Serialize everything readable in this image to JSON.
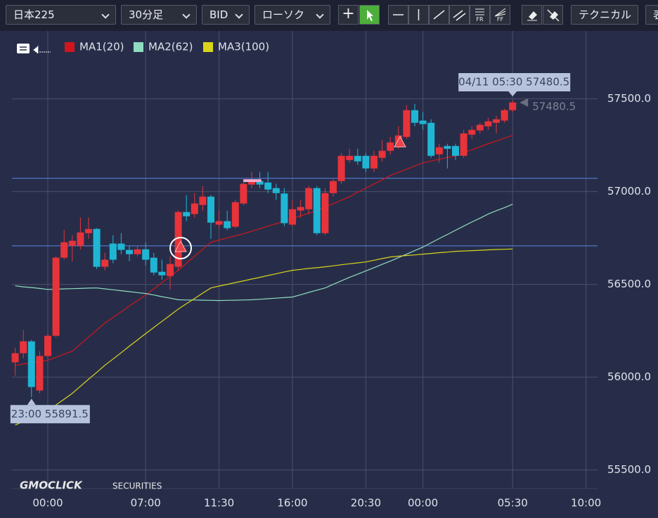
{
  "toolbar": {
    "symbol": "日本225",
    "timeframe": "30分足",
    "price_type": "BID",
    "chart_style": "ローソク",
    "tool_fr": "FR",
    "tool_ff": "FF",
    "technical": "テクニカル",
    "table": "表"
  },
  "logo": {
    "brand": "GMOCLICK",
    "suffix": "SECURITIES"
  },
  "chart_data": {
    "type": "candlestick",
    "categories": [
      null,
      null,
      null,
      null,
      "00:00",
      null,
      null,
      null,
      null,
      null,
      null,
      null,
      null,
      null,
      null,
      null,
      "07:00",
      null,
      null,
      null,
      null,
      null,
      null,
      null,
      null,
      "11:30",
      null,
      null,
      null,
      null,
      null,
      null,
      null,
      null,
      "16:00",
      null,
      null,
      null,
      null,
      null,
      null,
      null,
      null,
      "20:30",
      null,
      null,
      null,
      null,
      null,
      null,
      "00:00",
      null,
      null,
      null,
      null,
      null,
      null,
      null,
      null,
      null,
      null,
      "05:30",
      null,
      null,
      null,
      null,
      null,
      null,
      null,
      null,
      "10:00"
    ],
    "open": [
      56080,
      56129,
      56193,
      55928,
      56114,
      56223,
      56644,
      56708,
      56708,
      56776,
      56799,
      56595,
      56720,
      56720,
      56686,
      56663,
      56689,
      56644,
      56568,
      56545,
      56595,
      56890,
      56879,
      56928,
      56973,
      56822,
      56841,
      56811,
      56936,
      57038,
      57057,
      57049,
      57019,
      56990,
      56822,
      56898,
      56905,
      57019,
      56776,
      56992,
      57057,
      57170,
      57193,
      57193,
      57125,
      57182,
      57220,
      57258,
      57295,
      57439,
      57383,
      57371,
      57201,
      57246,
      57246,
      57193,
      57307,
      57330,
      57352,
      57371,
      57383,
      57439,
      null,
      null,
      null,
      null,
      null,
      null,
      null,
      null,
      null
    ],
    "high": [
      56159,
      56254,
      56201,
      56140,
      56235,
      56651,
      56792,
      56765,
      56860,
      56860,
      56803,
      56670,
      56765,
      56776,
      56708,
      56708,
      56727,
      56670,
      56633,
      56651,
      56898,
      56981,
      56992,
      57030,
      56981,
      56898,
      56898,
      56955,
      57068,
      57106,
      57106,
      57106,
      57042,
      57019,
      56955,
      56955,
      57030,
      57030,
      57019,
      57068,
      57208,
      57231,
      57231,
      57208,
      57220,
      57277,
      57295,
      57352,
      57466,
      57473,
      57428,
      57390,
      57258,
      57258,
      57258,
      57333,
      57352,
      57371,
      57398,
      57409,
      57447,
      57492,
      null,
      null,
      null,
      null,
      null,
      null,
      null,
      null,
      null
    ],
    "low": [
      56008,
      56102,
      55891.5,
      55913,
      56102,
      56216,
      56633,
      56625,
      56689,
      56746,
      56583,
      56576,
      56614,
      56663,
      56625,
      56651,
      56602,
      56549,
      56526,
      56473,
      56576,
      56841,
      56860,
      56898,
      56746,
      56803,
      56792,
      56803,
      56928,
      57019,
      57019,
      56992,
      56955,
      56814,
      56814,
      56860,
      56879,
      56765,
      56765,
      56973,
      57042,
      57155,
      57144,
      57106,
      57106,
      57163,
      57201,
      57231,
      57284,
      57352,
      57333,
      57182,
      57155,
      57125,
      57170,
      57182,
      57284,
      57314,
      57333,
      57314,
      57371,
      57428,
      null,
      null,
      null,
      null,
      null,
      null,
      null,
      null,
      null
    ],
    "close": [
      56129,
      56193,
      55947,
      56114,
      56223,
      56644,
      56727,
      56735,
      56780,
      56799,
      56595,
      56633,
      56633,
      56686,
      56663,
      56689,
      56633,
      56564,
      56549,
      56610,
      56890,
      56867,
      56936,
      56973,
      56833,
      56841,
      56803,
      56943,
      57042,
      57057,
      57038,
      57011,
      56992,
      56830,
      56905,
      56917,
      57019,
      56776,
      56992,
      57057,
      57193,
      57193,
      57163,
      57125,
      57193,
      57220,
      57265,
      57303,
      57439,
      57371,
      57364,
      57193,
      57239,
      57231,
      57193,
      57314,
      57333,
      57360,
      57379,
      57390,
      57439,
      57480.5,
      null,
      null,
      null,
      null,
      null,
      null,
      null,
      null,
      null
    ],
    "up_color": "#e8333a",
    "down_color": "#1fb6d4",
    "series": [
      {
        "name": "MA1(20)",
        "color": "#d0161c",
        "values": [
          56064,
          56071,
          56078,
          56084,
          56091,
          56107,
          56124,
          56140,
          56178,
          56216,
          56254,
          56292,
          56322,
          56352,
          56383,
          56413,
          56443,
          56476,
          56510,
          56543,
          56576,
          56614,
          56652,
          56689,
          56727,
          56739,
          56750,
          56762,
          56773,
          56787,
          56800,
          56814,
          56827,
          56841,
          56855,
          56870,
          56884,
          56898,
          56917,
          56935,
          56954,
          56973,
          56996,
          57019,
          57041,
          57064,
          57087,
          57104,
          57121,
          57138,
          57155,
          57165,
          57174,
          57184,
          57193,
          57209,
          57226,
          57242,
          57258,
          57273,
          57288,
          57303,
          null,
          null,
          null,
          null,
          null,
          null,
          null,
          null,
          null
        ]
      },
      {
        "name": "MA2(62)",
        "color": "#8fdcc0",
        "values": [
          56492,
          56487,
          56483,
          56478,
          56473,
          56474,
          56476,
          56477,
          56478,
          56480,
          56481,
          56476,
          56471,
          56466,
          56461,
          56456,
          56451,
          56443,
          56434,
          56426,
          56417,
          56416,
          56416,
          56415,
          56414,
          56413,
          56414,
          56415,
          56416,
          56417,
          56420,
          56423,
          56426,
          56429,
          56432,
          56444,
          56457,
          56469,
          56481,
          56500,
          56519,
          56538,
          56555,
          56573,
          56590,
          56608,
          56625,
          56644,
          56663,
          56682,
          56701,
          56724,
          56747,
          56769,
          56792,
          56814,
          56836,
          56857,
          56879,
          56897,
          56914,
          56932,
          null,
          null,
          null,
          null,
          null,
          null,
          null,
          null,
          null
        ]
      },
      {
        "name": "MA3(100)",
        "color": "#d9d51a",
        "values": [
          55742,
          55761,
          55780,
          55799,
          55818,
          55850,
          55881,
          55913,
          55951,
          55989,
          56026,
          56064,
          56098,
          56132,
          56167,
          56201,
          56235,
          56268,
          56301,
          56334,
          56367,
          56396,
          56424,
          56453,
          56481,
          56491,
          56500,
          56510,
          56519,
          56529,
          56538,
          56548,
          56557,
          56567,
          56576,
          56581,
          56586,
          56590,
          56595,
          56600,
          56606,
          56611,
          56616,
          56621,
          56630,
          56639,
          56648,
          56652,
          56656,
          56659,
          56663,
          56667,
          56671,
          56674,
          56678,
          56680,
          56682,
          56684,
          56686,
          56688,
          56689,
          56691,
          null,
          null,
          null,
          null,
          null,
          null,
          null,
          null,
          null
        ]
      }
    ],
    "hlines": [
      57072,
      56708
    ],
    "hline_color": "#4f73c4",
    "annotations": {
      "last": "04/11 05:30 57480.5",
      "low": "23:00 55891.5",
      "price": "57480.5"
    },
    "ylim": [
      55400,
      57870
    ],
    "yticks": [
      {
        "value": 55500,
        "label": "55500.0"
      },
      {
        "value": 56000,
        "label": "56000.0"
      },
      {
        "value": 56500,
        "label": "56500.0"
      },
      {
        "value": 57000,
        "label": "57000.0"
      },
      {
        "value": 57500,
        "label": "57500.0"
      }
    ],
    "grid": true
  }
}
